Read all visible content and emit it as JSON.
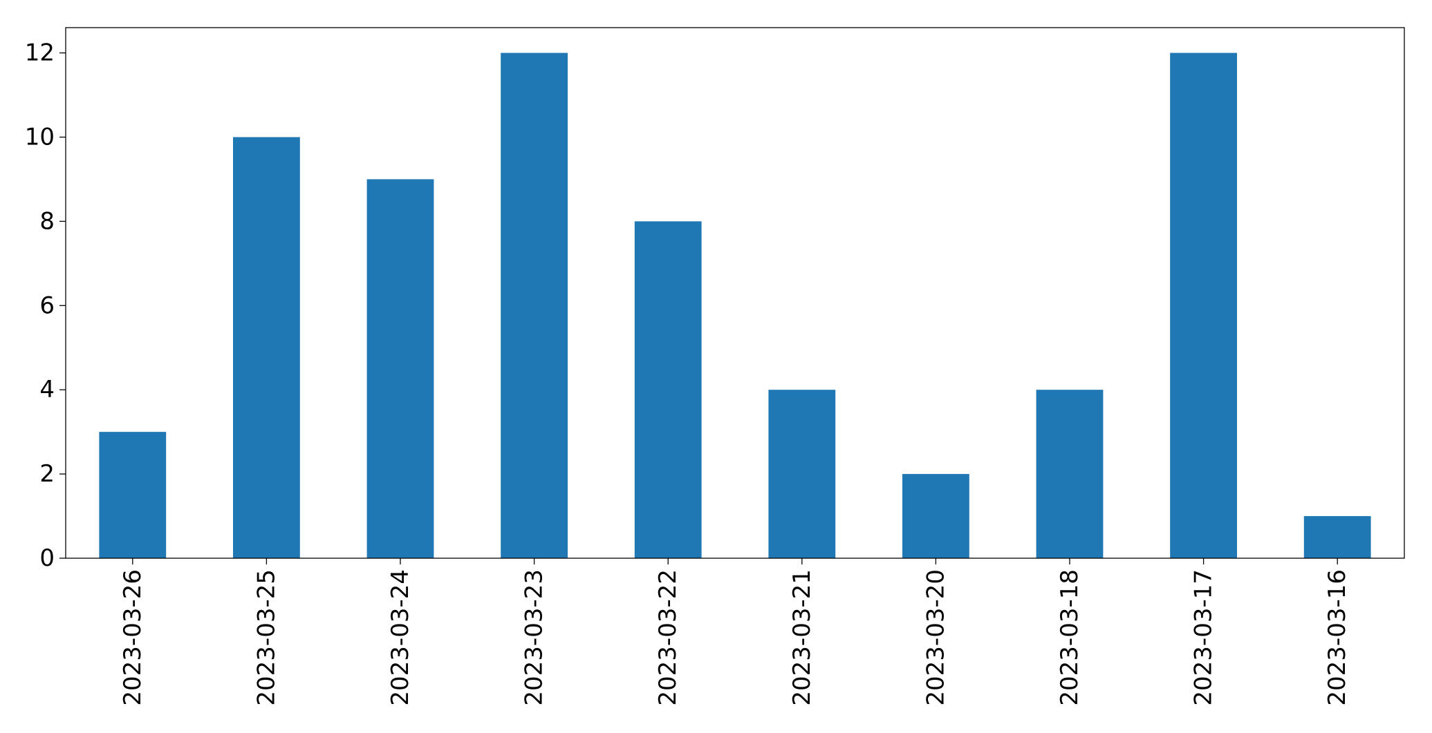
{
  "chart_data": {
    "type": "bar",
    "categories": [
      "2023-03-26",
      "2023-03-25",
      "2023-03-24",
      "2023-03-23",
      "2023-03-22",
      "2023-03-21",
      "2023-03-20",
      "2023-03-18",
      "2023-03-17",
      "2023-03-16"
    ],
    "values": [
      3,
      10,
      9,
      12,
      8,
      4,
      2,
      4,
      12,
      1
    ],
    "color": "#1f77b4",
    "ylim": [
      0,
      12.6
    ],
    "yticks": [
      0,
      2,
      4,
      6,
      8,
      10,
      12
    ],
    "grid": false
  }
}
